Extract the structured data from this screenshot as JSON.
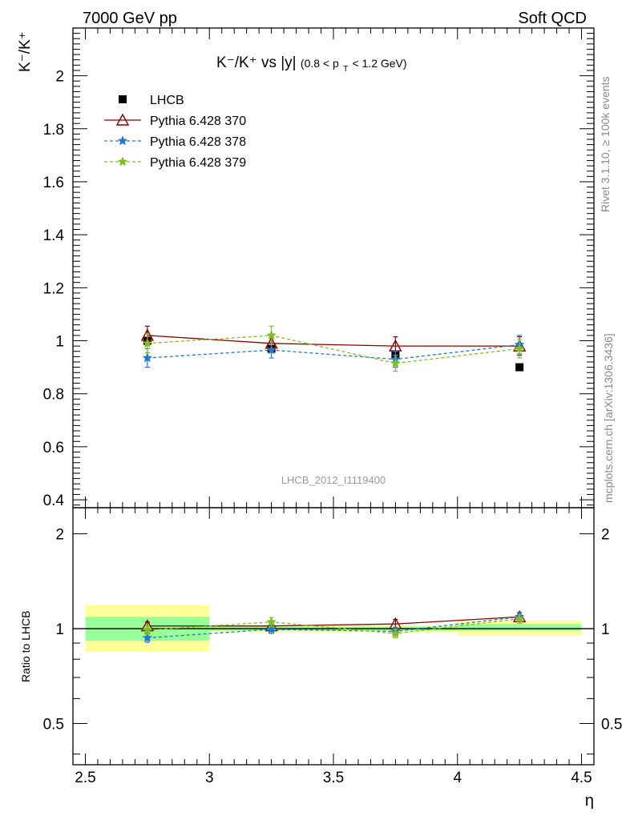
{
  "header": {
    "left": "7000 GeV pp",
    "right": "Soft QCD"
  },
  "side_text": {
    "rivet": "Rivet 3.1.10, ≥ 100k events",
    "mcplots": "mcplots.cern.ch [arXiv:1306.3436]"
  },
  "watermark": "LHCB_2012_I1119400",
  "chart_data": [
    {
      "type": "line",
      "panel": "main",
      "title_main": "K⁻/K⁺ vs |y|",
      "title_sub": "(0.8 < p",
      "title_sub_T": "T",
      "title_sub_end": " < 1.2 GeV)",
      "ylabel": "K⁻/K⁺",
      "ylim": [
        0.37,
        2.18
      ],
      "y_ticks": [
        0.4,
        0.6,
        0.8,
        1,
        1.2,
        1.4,
        1.6,
        1.8,
        2
      ],
      "y_tick_labels": [
        "0.4",
        "0.6",
        "0.8",
        "1",
        "1.2",
        "1.4",
        "1.6",
        "1.8",
        "2"
      ],
      "xlim": [
        2.45,
        4.55
      ],
      "x": [
        2.75,
        3.25,
        3.75,
        4.25
      ],
      "series": [
        {
          "name": "LHCB",
          "color": "#000000",
          "marker": "square",
          "line": "none",
          "values": [
            1.0,
            0.97,
            0.945,
            0.9
          ],
          "err": [
            0.005,
            0.005,
            0.005,
            0.005
          ]
        },
        {
          "name": "Pythia 6.428 370",
          "color": "#8b0000",
          "marker": "triangle-open",
          "line": "solid",
          "values": [
            1.02,
            0.99,
            0.98,
            0.98
          ],
          "err": [
            0.035,
            0.03,
            0.035,
            0.035
          ]
        },
        {
          "name": "Pythia 6.428 378",
          "color": "#1f78d4",
          "marker": "star",
          "line": "dashed",
          "values": [
            0.935,
            0.965,
            0.93,
            0.985
          ],
          "err": [
            0.035,
            0.03,
            0.03,
            0.035
          ]
        },
        {
          "name": "Pythia 6.428 379",
          "color": "#7fbf1f",
          "marker": "star",
          "line": "dashed",
          "values": [
            0.99,
            1.02,
            0.915,
            0.97
          ],
          "err": [
            0.035,
            0.035,
            0.03,
            0.035
          ]
        }
      ]
    },
    {
      "type": "line",
      "panel": "ratio",
      "ylabel": "Ratio to LHCB",
      "ylim": [
        0.37,
        2.42
      ],
      "y_ticks": [
        0.5,
        1,
        2
      ],
      "y_tick_labels": [
        "0.5",
        "1",
        "2"
      ],
      "x_ticks": [
        2.5,
        3,
        3.5,
        4,
        4.5
      ],
      "x_tick_labels": [
        "2.5",
        "3",
        "3.5",
        "4",
        "4.5"
      ],
      "xlabel": "η",
      "bands": [
        {
          "x0": 2.5,
          "x1": 3.0,
          "green": [
            0.915,
            1.09
          ],
          "yellow": [
            0.845,
            1.19
          ]
        },
        {
          "x0": 3.0,
          "x1": 3.5,
          "green": [
            0.985,
            1.015
          ],
          "yellow": [
            0.975,
            1.025
          ]
        },
        {
          "x0": 3.5,
          "x1": 4.0,
          "green": [
            0.985,
            1.015
          ],
          "yellow": [
            0.975,
            1.025
          ]
        },
        {
          "x0": 4.0,
          "x1": 4.5,
          "green": [
            0.985,
            1.035
          ],
          "yellow": [
            0.955,
            1.06
          ]
        }
      ],
      "x": [
        2.75,
        3.25,
        3.75,
        4.25
      ],
      "series": [
        {
          "name": "Pythia 6.428 370",
          "color": "#8b0000",
          "marker": "triangle-open",
          "line": "solid",
          "values": [
            1.02,
            1.02,
            1.035,
            1.09
          ],
          "err": [
            0.03,
            0.03,
            0.035,
            0.035
          ]
        },
        {
          "name": "Pythia 6.428 378",
          "color": "#1f78d4",
          "marker": "star",
          "line": "dashed",
          "values": [
            0.935,
            0.995,
            0.98,
            1.09
          ],
          "err": [
            0.03,
            0.03,
            0.03,
            0.035
          ]
        },
        {
          "name": "Pythia 6.428 379",
          "color": "#7fbf1f",
          "marker": "star",
          "line": "dashed",
          "values": [
            0.99,
            1.05,
            0.965,
            1.075
          ],
          "err": [
            0.03,
            0.035,
            0.03,
            0.035
          ]
        }
      ]
    }
  ]
}
